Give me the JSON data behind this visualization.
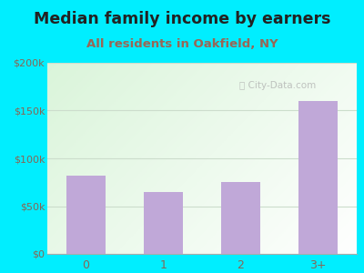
{
  "title": "Median family income by earners",
  "subtitle": "All residents in Oakfield, NY",
  "categories": [
    "0",
    "1",
    "2",
    "3+"
  ],
  "values": [
    82000,
    65000,
    75000,
    160000
  ],
  "bar_color": "#c0a8d8",
  "ylim": [
    0,
    200000
  ],
  "yticks": [
    0,
    50000,
    100000,
    150000,
    200000
  ],
  "ytick_labels": [
    "$0",
    "$50k",
    "$100k",
    "$150k",
    "$200k"
  ],
  "bg_outer": "#00eeff",
  "title_color": "#222222",
  "subtitle_color": "#996655",
  "tick_color": "#886655",
  "grid_color": "#ccddcc",
  "watermark": "City-Data.com",
  "title_fontsize": 12.5,
  "subtitle_fontsize": 9.5
}
